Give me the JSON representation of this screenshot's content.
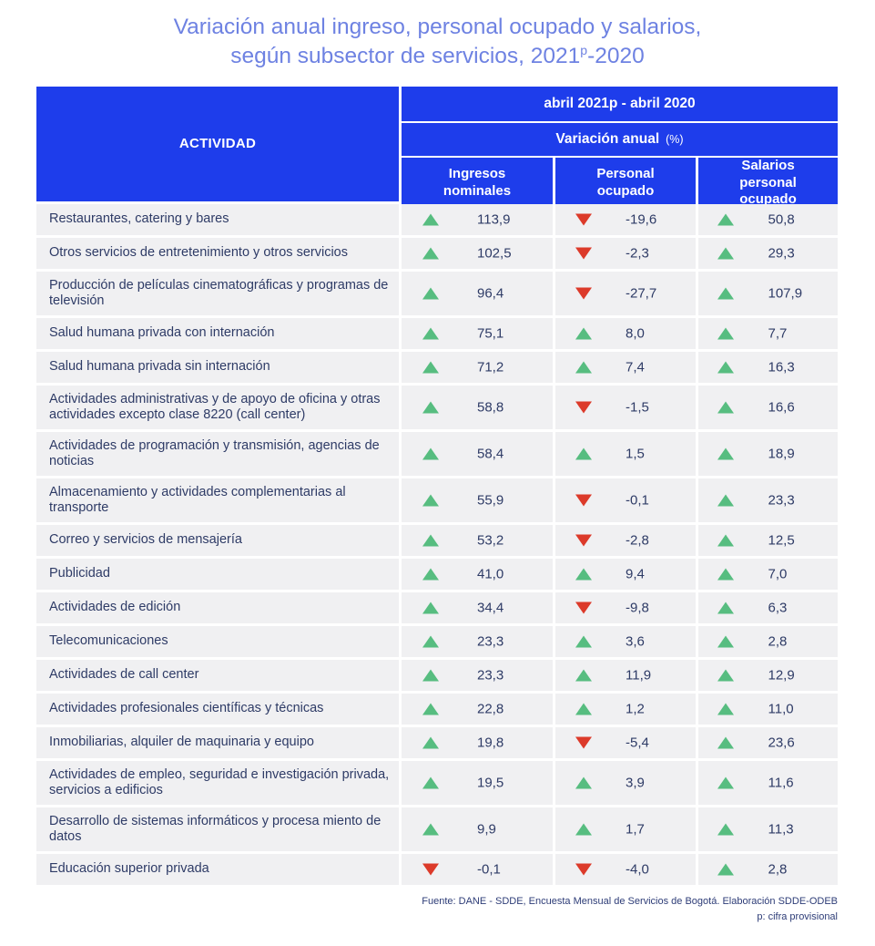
{
  "title": {
    "line1": "Variación anual ingreso, personal ocupado y salarios,",
    "line2_prefix": "según subsector de servicios, 2021",
    "line2_sup": "p",
    "line2_suffix": "-2020"
  },
  "table": {
    "activity_header": "ACTIVIDAD",
    "period_header": "abril 2021p - abril 2020",
    "variation_header": "Variación anual",
    "variation_unit": "(%)",
    "columns": [
      "Ingresos nominales",
      "Personal ocupado",
      "Salarios personal ocupado"
    ],
    "rows": [
      {
        "activity": "Restaurantes, catering y bares",
        "ingresos": "113,9",
        "ingresos_dir": "up",
        "personal": "-19,6",
        "personal_dir": "down",
        "salarios": "50,8",
        "salarios_dir": "up"
      },
      {
        "activity": "Otros servicios de entretenimiento y otros servicios",
        "ingresos": "102,5",
        "ingresos_dir": "up",
        "personal": "-2,3",
        "personal_dir": "down",
        "salarios": "29,3",
        "salarios_dir": "up"
      },
      {
        "activity": "Producción de películas cinematográficas y programas de televisión",
        "ingresos": "96,4",
        "ingresos_dir": "up",
        "personal": "-27,7",
        "personal_dir": "down",
        "salarios": "107,9",
        "salarios_dir": "up"
      },
      {
        "activity": "Salud humana privada con internación",
        "ingresos": "75,1",
        "ingresos_dir": "up",
        "personal": "8,0",
        "personal_dir": "up",
        "salarios": "7,7",
        "salarios_dir": "up"
      },
      {
        "activity": "Salud humana privada sin internación",
        "ingresos": "71,2",
        "ingresos_dir": "up",
        "personal": "7,4",
        "personal_dir": "up",
        "salarios": "16,3",
        "salarios_dir": "up"
      },
      {
        "activity": "Actividades administrativas y de apoyo de oficina y otras actividades excepto clase 8220 (call center)",
        "ingresos": "58,8",
        "ingresos_dir": "up",
        "personal": "-1,5",
        "personal_dir": "down",
        "salarios": "16,6",
        "salarios_dir": "up"
      },
      {
        "activity": "Actividades de programación y transmisión, agencias de noticias",
        "ingresos": "58,4",
        "ingresos_dir": "up",
        "personal": "1,5",
        "personal_dir": "up",
        "salarios": "18,9",
        "salarios_dir": "up"
      },
      {
        "activity": "Almacenamiento y actividades complementarias al transporte",
        "ingresos": "55,9",
        "ingresos_dir": "up",
        "personal": "-0,1",
        "personal_dir": "down",
        "salarios": "23,3",
        "salarios_dir": "up"
      },
      {
        "activity": "Correo y servicios de mensajería",
        "ingresos": "53,2",
        "ingresos_dir": "up",
        "personal": "-2,8",
        "personal_dir": "down",
        "salarios": "12,5",
        "salarios_dir": "up"
      },
      {
        "activity": "Publicidad",
        "ingresos": "41,0",
        "ingresos_dir": "up",
        "personal": "9,4",
        "personal_dir": "up",
        "salarios": "7,0",
        "salarios_dir": "up"
      },
      {
        "activity": "Actividades de edición",
        "ingresos": "34,4",
        "ingresos_dir": "up",
        "personal": "-9,8",
        "personal_dir": "down",
        "salarios": "6,3",
        "salarios_dir": "up"
      },
      {
        "activity": "Telecomunicaciones",
        "ingresos": "23,3",
        "ingresos_dir": "up",
        "personal": "3,6",
        "personal_dir": "up",
        "salarios": "2,8",
        "salarios_dir": "up"
      },
      {
        "activity": "Actividades de call center",
        "ingresos": "23,3",
        "ingresos_dir": "up",
        "personal": "11,9",
        "personal_dir": "up",
        "salarios": "12,9",
        "salarios_dir": "up"
      },
      {
        "activity": "Actividades profesionales científicas y técnicas",
        "ingresos": "22,8",
        "ingresos_dir": "up",
        "personal": "1,2",
        "personal_dir": "up",
        "salarios": "11,0",
        "salarios_dir": "up"
      },
      {
        "activity": "Inmobiliarias, alquiler de maquinaria y equipo",
        "ingresos": "19,8",
        "ingresos_dir": "up",
        "personal": "-5,4",
        "personal_dir": "down",
        "salarios": "23,6",
        "salarios_dir": "up"
      },
      {
        "activity": "Actividades de empleo, seguridad e investigación privada, servicios a edificios",
        "ingresos": "19,5",
        "ingresos_dir": "up",
        "personal": "3,9",
        "personal_dir": "up",
        "salarios": "11,6",
        "salarios_dir": "up"
      },
      {
        "activity": "Desarrollo de sistemas informáticos y procesa miento de datos",
        "ingresos": "9,9",
        "ingresos_dir": "up",
        "personal": "1,7",
        "personal_dir": "up",
        "salarios": "11,3",
        "salarios_dir": "up"
      },
      {
        "activity": "Educación superior privada",
        "ingresos": "-0,1",
        "ingresos_dir": "down",
        "personal": "-4,0",
        "personal_dir": "down",
        "salarios": "2,8",
        "salarios_dir": "up"
      }
    ]
  },
  "footer": {
    "source": "Fuente: DANE - SDDE, Encuesta Mensual de Servicios de Bogotá. Elaboración SDDE-ODEB",
    "note": "p: cifra provisional"
  },
  "colors": {
    "header_blue": "#1e3deb",
    "title_blue": "#6e82e2",
    "text_navy": "#2e3b66",
    "row_background": "#f0f0f2",
    "up_green": "#57bd80",
    "down_red": "#dc3a2a"
  },
  "chart_data": {
    "type": "table",
    "title": "Variación anual ingreso, personal ocupado y salarios, según subsector de servicios, 2021p-2020",
    "period": "abril 2021p - abril 2020",
    "unit": "Variación anual (%)",
    "columns": [
      "Ingresos nominales",
      "Personal ocupado",
      "Salarios personal ocupado"
    ],
    "categories": [
      "Restaurantes, catering y bares",
      "Otros servicios de entretenimiento y otros servicios",
      "Producción de películas cinematográficas y programas de televisión",
      "Salud humana privada con internación",
      "Salud humana privada sin internación",
      "Actividades administrativas y de apoyo de oficina y otras actividades excepto clase 8220 (call center)",
      "Actividades de programación y transmisión, agencias de noticias",
      "Almacenamiento y actividades complementarias al transporte",
      "Correo y servicios de mensajería",
      "Publicidad",
      "Actividades de edición",
      "Telecomunicaciones",
      "Actividades de call center",
      "Actividades profesionales científicas y técnicas",
      "Inmobiliarias, alquiler de maquinaria y equipo",
      "Actividades de empleo, seguridad e investigación privada, servicios a edificios",
      "Desarrollo de sistemas informáticos y procesamiento de datos",
      "Educación superior privada"
    ],
    "series": [
      {
        "name": "Ingresos nominales",
        "values": [
          113.9,
          102.5,
          96.4,
          75.1,
          71.2,
          58.8,
          58.4,
          55.9,
          53.2,
          41.0,
          34.4,
          23.3,
          23.3,
          22.8,
          19.8,
          19.5,
          9.9,
          -0.1
        ]
      },
      {
        "name": "Personal ocupado",
        "values": [
          -19.6,
          -2.3,
          -27.7,
          8.0,
          7.4,
          -1.5,
          1.5,
          -0.1,
          -2.8,
          9.4,
          -9.8,
          3.6,
          11.9,
          1.2,
          -5.4,
          3.9,
          1.7,
          -4.0
        ]
      },
      {
        "name": "Salarios personal ocupado",
        "values": [
          50.8,
          29.3,
          107.9,
          7.7,
          16.3,
          16.6,
          18.9,
          23.3,
          12.5,
          7.0,
          6.3,
          2.8,
          12.9,
          11.0,
          23.6,
          11.6,
          11.3,
          2.8
        ]
      }
    ],
    "source": "Fuente: DANE - SDDE, Encuesta Mensual de Servicios de Bogotá. Elaboración SDDE-ODEB",
    "note": "p: cifra provisional"
  }
}
